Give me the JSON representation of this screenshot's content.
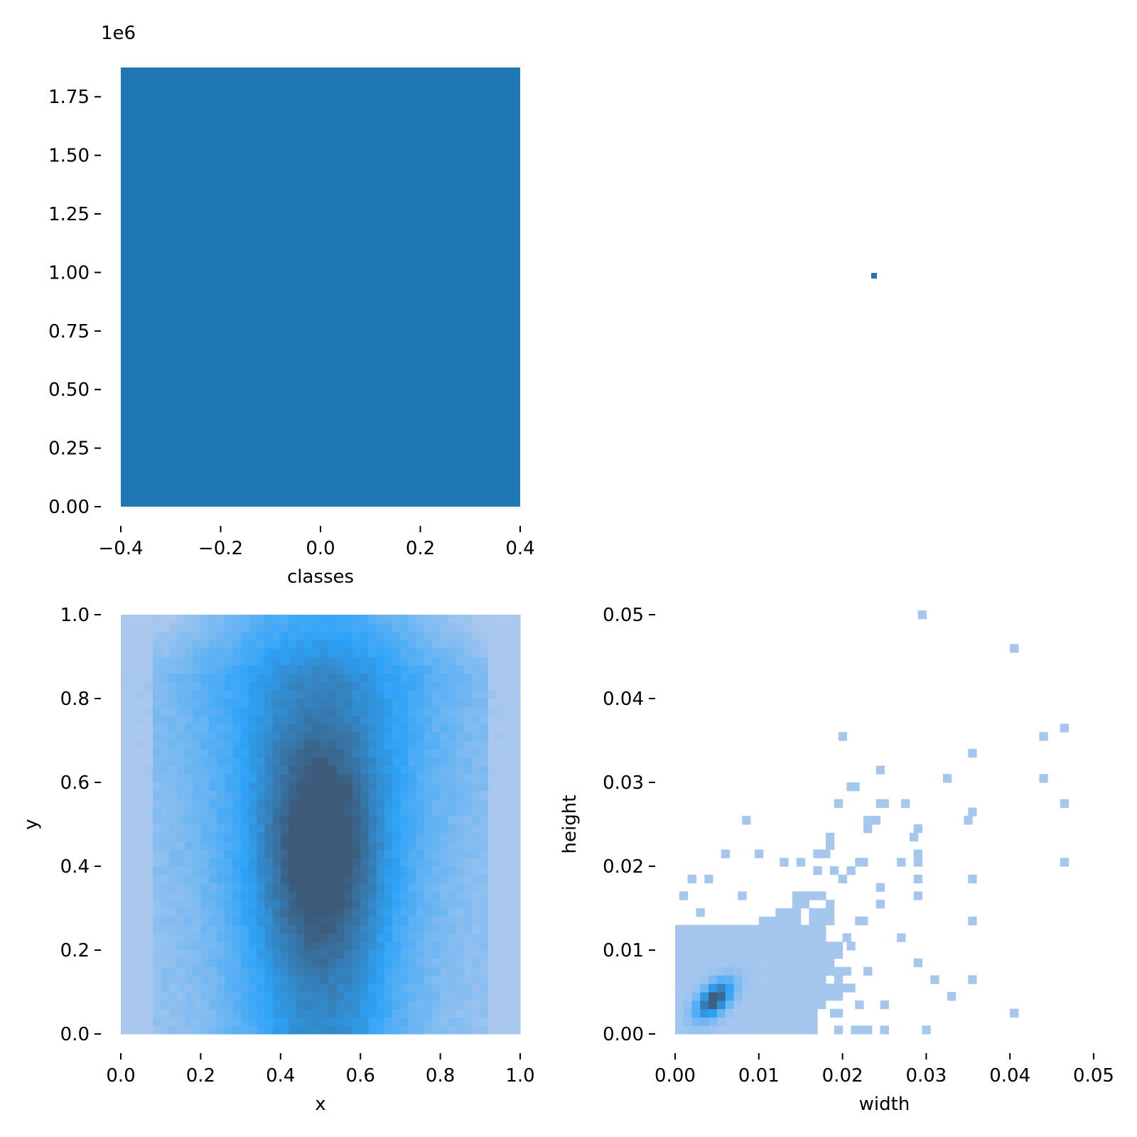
{
  "chart_data": [
    {
      "id": "classes",
      "type": "bar",
      "xlabel": "classes",
      "ylabel": "",
      "offset_label": "1e6",
      "x_ticks": [
        -0.4,
        -0.2,
        0.0,
        0.2,
        0.4
      ],
      "x_tick_labels": [
        "−0.4",
        "−0.2",
        "0.0",
        "0.2",
        "0.4"
      ],
      "y_ticks": [
        0,
        0.25,
        0.5,
        0.75,
        1.0,
        1.25,
        1.5,
        1.75
      ],
      "y_tick_labels": [
        "0.00",
        "0.25",
        "0.50",
        "0.75",
        "1.00",
        "1.25",
        "1.50",
        "1.75"
      ],
      "xlim": [
        -0.4,
        0.4
      ],
      "ylim": [
        0,
        1.875
      ],
      "bars": [
        {
          "x0": -0.4,
          "x1": 0.4,
          "value": 1.875
        }
      ],
      "color": "#1f77b4",
      "grid": false
    },
    {
      "id": "marker",
      "type": "scatter",
      "points": [
        {
          "x": 0.5,
          "y": 0.5
        }
      ],
      "color": "#1f77b4"
    },
    {
      "id": "xy",
      "type": "heatmap",
      "xlabel": "x",
      "ylabel": "y",
      "x_ticks": [
        0,
        0.2,
        0.4,
        0.6,
        0.8,
        1.0
      ],
      "x_tick_labels": [
        "0.0",
        "0.2",
        "0.4",
        "0.6",
        "0.8",
        "1.0"
      ],
      "y_ticks": [
        0,
        0.2,
        0.4,
        0.6,
        0.8,
        1.0
      ],
      "y_tick_labels": [
        "0.0",
        "0.2",
        "0.4",
        "0.6",
        "0.8",
        "1.0"
      ],
      "xlim": [
        0,
        1
      ],
      "ylim": [
        0,
        1
      ],
      "bins": [
        50,
        50
      ],
      "colors": [
        "#aac8ee",
        "#2ea3f7",
        "#3d5a78"
      ],
      "grid": false
    },
    {
      "id": "wh",
      "type": "heatmap",
      "xlabel": "width",
      "ylabel": "height",
      "x_ticks": [
        0,
        0.01,
        0.02,
        0.03,
        0.04,
        0.05
      ],
      "x_tick_labels": [
        "0.00",
        "0.01",
        "0.02",
        "0.03",
        "0.04",
        "0.05"
      ],
      "y_ticks": [
        0,
        0.01,
        0.02,
        0.03,
        0.04,
        0.05
      ],
      "y_tick_labels": [
        "0.00",
        "0.01",
        "0.02",
        "0.03",
        "0.04",
        "0.05"
      ],
      "xlim": [
        0,
        0.05
      ],
      "ylim": [
        0,
        0.05
      ],
      "bin_size": 0.001,
      "colors": [
        "#aac8ee",
        "#2ea3f7",
        "#3d5a78"
      ],
      "sparse_cells": [
        [
          0.029,
          0.0495
        ],
        [
          0.04,
          0.0455
        ],
        [
          0.046,
          0.036
        ],
        [
          0.0435,
          0.035
        ],
        [
          0.035,
          0.033
        ],
        [
          0.0195,
          0.035
        ],
        [
          0.024,
          0.031
        ],
        [
          0.032,
          0.03
        ],
        [
          0.0435,
          0.03
        ],
        [
          0.0205,
          0.029
        ],
        [
          0.021,
          0.029
        ],
        [
          0.019,
          0.027
        ],
        [
          0.024,
          0.027
        ],
        [
          0.0245,
          0.027
        ],
        [
          0.027,
          0.027
        ],
        [
          0.046,
          0.027
        ],
        [
          0.035,
          0.026
        ],
        [
          0.0345,
          0.025
        ],
        [
          0.008,
          0.025
        ],
        [
          0.0225,
          0.025
        ],
        [
          0.0235,
          0.025
        ],
        [
          0.0285,
          0.024
        ],
        [
          0.0225,
          0.024
        ],
        [
          0.028,
          0.023
        ],
        [
          0.018,
          0.023
        ],
        [
          0.018,
          0.022
        ],
        [
          0.0175,
          0.021
        ],
        [
          0.0165,
          0.021
        ],
        [
          0.0285,
          0.021
        ],
        [
          0.0055,
          0.021
        ],
        [
          0.0095,
          0.021
        ],
        [
          0.0125,
          0.02
        ],
        [
          0.0145,
          0.02
        ],
        [
          0.022,
          0.02
        ],
        [
          0.0215,
          0.02
        ],
        [
          0.0265,
          0.02
        ],
        [
          0.0285,
          0.02
        ],
        [
          0.046,
          0.02
        ],
        [
          0.0165,
          0.019
        ],
        [
          0.0185,
          0.019
        ],
        [
          0.0205,
          0.019
        ],
        [
          0.0195,
          0.018
        ],
        [
          0.0035,
          0.018
        ],
        [
          0.0015,
          0.018
        ],
        [
          0.0285,
          0.018
        ],
        [
          0.035,
          0.018
        ],
        [
          0.024,
          0.017
        ],
        [
          0.0285,
          0.016
        ],
        [
          0.0005,
          0.016
        ],
        [
          0.0075,
          0.016
        ],
        [
          0.024,
          0.015
        ],
        [
          0.0025,
          0.014
        ],
        [
          0.0215,
          0.013
        ],
        [
          0.022,
          0.013
        ],
        [
          0.035,
          0.013
        ],
        [
          0.0265,
          0.011
        ],
        [
          0.0205,
          0.01
        ],
        [
          0.0285,
          0.008
        ],
        [
          0.0225,
          0.007
        ],
        [
          0.0305,
          0.006
        ],
        [
          0.035,
          0.006
        ],
        [
          0.0205,
          0.005
        ],
        [
          0.0325,
          0.004
        ],
        [
          0.0215,
          0.003
        ],
        [
          0.0245,
          0.003
        ],
        [
          0.0185,
          0.002
        ],
        [
          0.04,
          0.002
        ],
        [
          0.0215,
          0.0
        ],
        [
          0.0225,
          0.0
        ],
        [
          0.0245,
          0.0
        ],
        [
          0.0295,
          0.0
        ]
      ],
      "grid": false
    }
  ]
}
